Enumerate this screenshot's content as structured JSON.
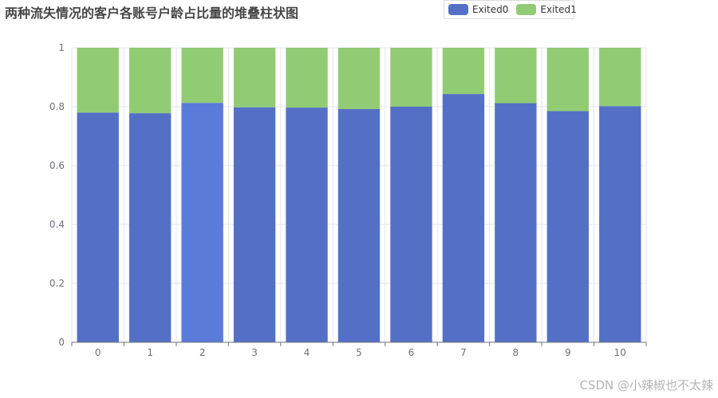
{
  "title": "两种流失情况的客户各账号户龄占比量的堆叠柱状图",
  "watermark": "CSDN @小辣椒也不太辣",
  "colors": {
    "exited0": "#5470c6",
    "exited0_highlight": "#5b7bd8",
    "exited1": "#91cc75",
    "axis": "#6e7079",
    "grid": "#e0e6f1"
  },
  "legend": {
    "position": "top-right",
    "items": [
      {
        "name": "Exited0",
        "color": "#5470c6"
      },
      {
        "name": "Exited1",
        "color": "#91cc75"
      }
    ]
  },
  "chart_data": {
    "type": "bar",
    "stacked": true,
    "title": "两种流失情况的客户各账号户龄占比量的堆叠柱状图",
    "xlabel": "",
    "ylabel": "",
    "categories": [
      "0",
      "1",
      "2",
      "3",
      "4",
      "5",
      "6",
      "7",
      "8",
      "9",
      "10"
    ],
    "ylim": [
      0,
      1
    ],
    "yticks": [
      "0",
      "0.2",
      "0.4",
      "0.6",
      "0.8",
      "1"
    ],
    "grid": true,
    "highlighted_index": 2,
    "series": [
      {
        "name": "Exited0",
        "values": [
          0.78,
          0.778,
          0.813,
          0.798,
          0.797,
          0.792,
          0.8,
          0.843,
          0.812,
          0.785,
          0.802
        ]
      },
      {
        "name": "Exited1",
        "values": [
          0.22,
          0.222,
          0.187,
          0.202,
          0.203,
          0.208,
          0.2,
          0.157,
          0.188,
          0.215,
          0.198
        ]
      }
    ]
  }
}
